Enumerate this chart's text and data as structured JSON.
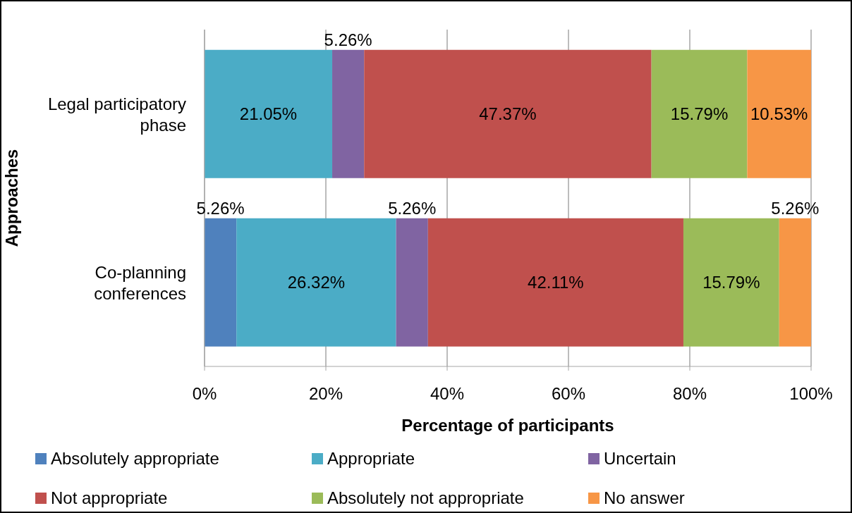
{
  "chart_data": {
    "type": "bar",
    "orientation": "horizontal",
    "stacked": true,
    "categories": [
      "Legal participatory phase",
      "Co-planning conferences"
    ],
    "xlabel": "Percentage of participants",
    "ylabel": "Approaches",
    "xlim": [
      0,
      100
    ],
    "xticks": [
      {
        "value": 0,
        "label": "0%"
      },
      {
        "value": 20,
        "label": "20%"
      },
      {
        "value": 40,
        "label": "40%"
      },
      {
        "value": 60,
        "label": "60%"
      },
      {
        "value": 80,
        "label": "80%"
      },
      {
        "value": 100,
        "label": "100%"
      }
    ],
    "grid": "x",
    "legend": "bottom",
    "series": [
      {
        "name": "Absolutely appropriate",
        "color": "#4f81bd",
        "values": [
          0,
          5.26
        ],
        "value_labels": [
          null,
          "5.26%"
        ]
      },
      {
        "name": "Appropriate",
        "color": "#4bacc6",
        "values": [
          21.05,
          26.32
        ],
        "value_labels": [
          "21.05%",
          "26.32%"
        ]
      },
      {
        "name": "Uncertain",
        "color": "#8064a2",
        "values": [
          5.26,
          5.26
        ],
        "value_labels": [
          "5.26%",
          "5.26%"
        ]
      },
      {
        "name": "Not appropriate",
        "color": "#c0504d",
        "values": [
          47.37,
          42.11
        ],
        "value_labels": [
          "47.37%",
          "42.11%"
        ]
      },
      {
        "name": "Absolutely not appropriate",
        "color": "#9bbb59",
        "values": [
          15.79,
          15.79
        ],
        "value_labels": [
          "15.79%",
          "15.79%"
        ]
      },
      {
        "name": "No answer",
        "color": "#f79646",
        "values": [
          10.53,
          5.26
        ],
        "value_labels": [
          "10.53%",
          "5.26%"
        ]
      }
    ]
  }
}
